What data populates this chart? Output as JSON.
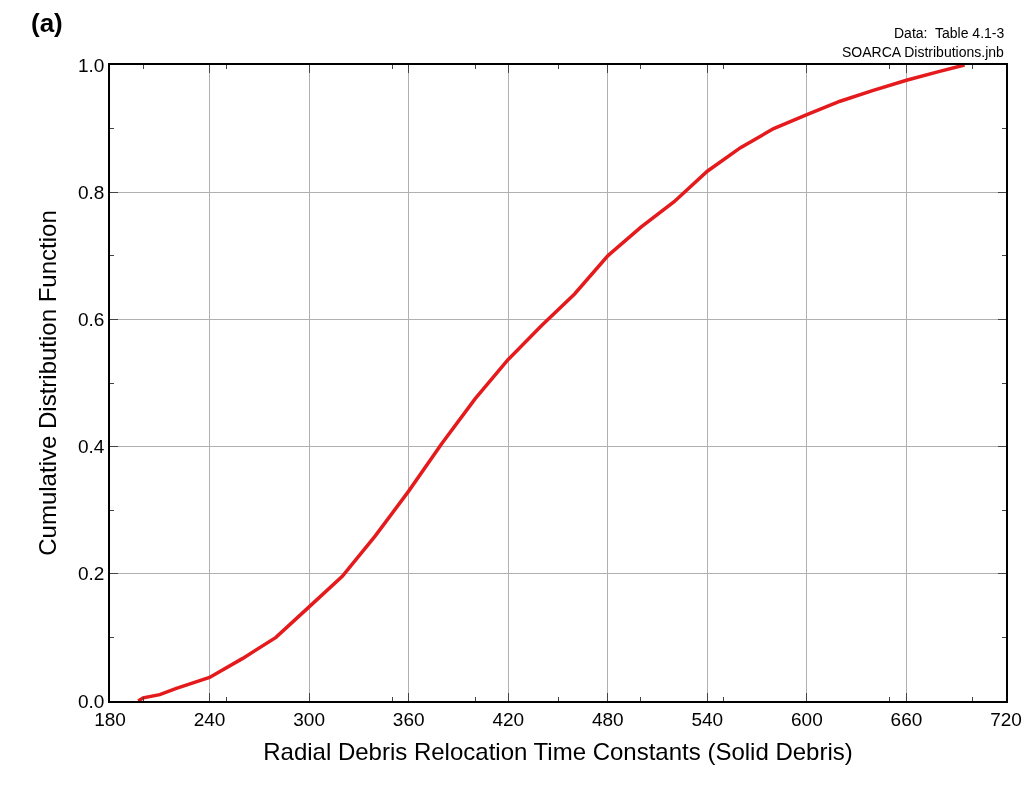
{
  "chart_data": {
    "type": "line",
    "title": "(a)",
    "xlabel": "Radial Debris Relocation Time Constants (Solid Debris)",
    "ylabel": "Cumulative Distribution Function",
    "annotations": [
      "Data:  Table 4.1-3",
      "SOARCA Distributions.jnb"
    ],
    "x": [
      197,
      200,
      210,
      220,
      240,
      260,
      280,
      300,
      320,
      340,
      360,
      380,
      400,
      420,
      440,
      460,
      480,
      500,
      520,
      540,
      560,
      580,
      600,
      620,
      640,
      660,
      680,
      695
    ],
    "series": [
      {
        "color": "#e41a1c",
        "values": [
          0.0,
          0.005,
          0.01,
          0.02,
          0.037,
          0.067,
          0.1,
          0.148,
          0.196,
          0.26,
          0.33,
          0.405,
          0.475,
          0.537,
          0.59,
          0.64,
          0.7,
          0.745,
          0.785,
          0.833,
          0.87,
          0.9,
          0.922,
          0.943,
          0.96,
          0.976,
          0.99,
          1.0
        ]
      }
    ],
    "xlim": [
      180,
      720
    ],
    "xticks": [
      180,
      240,
      300,
      360,
      420,
      480,
      540,
      600,
      660,
      720
    ],
    "ylim": [
      0,
      1
    ],
    "yticks": [
      {
        "value": 0,
        "label": "0.0"
      },
      0.2,
      0.4,
      0.6,
      0.8,
      {
        "value": 1,
        "label": "1.0"
      }
    ],
    "grid": true,
    "legend": false,
    "marker": "none",
    "line_style": "solid"
  }
}
